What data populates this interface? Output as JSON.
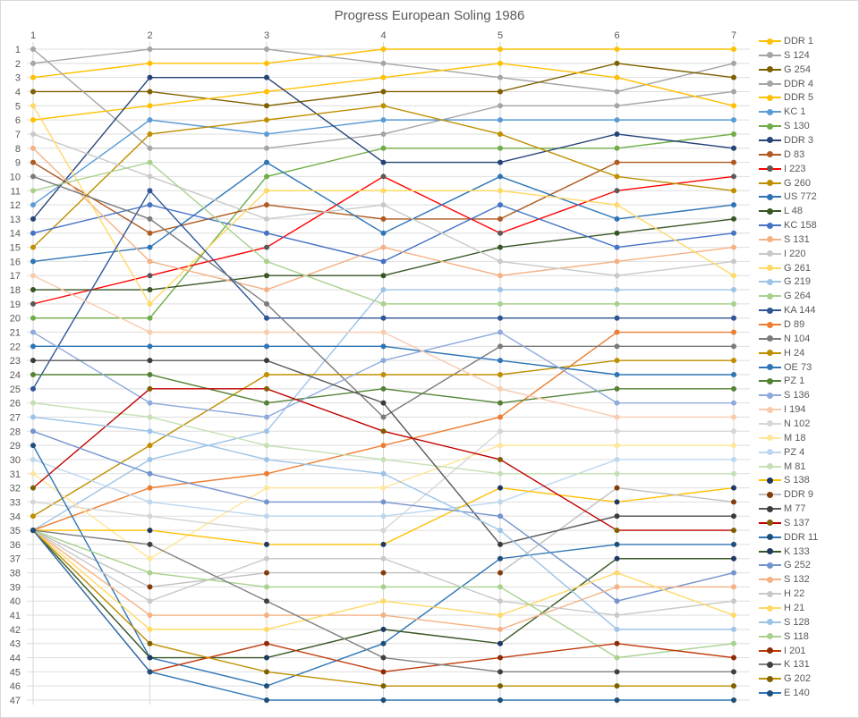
{
  "title": "Progress European Soling 1986",
  "chart_data": {
    "type": "line",
    "title": "Progress European Soling 1986",
    "x": [
      1,
      2,
      3,
      4,
      5,
      6,
      7
    ],
    "xlabel": "",
    "ylabel": "",
    "ylim": [
      1,
      47
    ],
    "y_axis": "rank 1 at top, 47 at bottom",
    "grid": true,
    "legend_position": "right",
    "axis_color": "#595959",
    "grid_color_h": "#dedede",
    "grid_color_v": "#d6d6d6",
    "series": [
      {
        "name": "DDR 1",
        "line": "#FFC000",
        "marker": "#FFC000",
        "ranks": [
          3,
          2,
          2,
          1,
          1,
          1,
          1
        ]
      },
      {
        "name": "S 124",
        "line": "#A5A5A5",
        "marker": "#A5A5A5",
        "ranks": [
          2,
          1,
          1,
          2,
          3,
          4,
          2
        ]
      },
      {
        "name": "G 254",
        "line": "#7F6000",
        "marker": "#7F6000",
        "ranks": [
          4,
          4,
          5,
          4,
          4,
          2,
          3
        ]
      },
      {
        "name": "DDR 4",
        "line": "#A5A5A5",
        "marker": "#A5A5A5",
        "ranks": [
          1,
          8,
          8,
          7,
          5,
          5,
          4
        ]
      },
      {
        "name": "DDR 5",
        "line": "#FFC000",
        "marker": "#FFC000",
        "ranks": [
          6,
          5,
          4,
          3,
          2,
          3,
          5
        ]
      },
      {
        "name": "KC 1",
        "line": "#5B9BD5",
        "marker": "#5B9BD5",
        "ranks": [
          12,
          6,
          7,
          6,
          6,
          6,
          6
        ]
      },
      {
        "name": "S 130",
        "line": "#70AD47",
        "marker": "#70AD47",
        "ranks": [
          20,
          20,
          10,
          8,
          8,
          8,
          7
        ]
      },
      {
        "name": "DDR 3",
        "line": "#264478",
        "marker": "#264478",
        "ranks": [
          13,
          3,
          3,
          9,
          9,
          7,
          8
        ]
      },
      {
        "name": "D 83",
        "line": "#AE5A21",
        "marker": "#AE5A21",
        "ranks": [
          9,
          14,
          12,
          13,
          13,
          9,
          9
        ]
      },
      {
        "name": "I 223",
        "line": "#FF0000",
        "marker": "#595959",
        "ranks": [
          19,
          17,
          15,
          10,
          14,
          11,
          10
        ]
      },
      {
        "name": "G 260",
        "line": "#BF8F00",
        "marker": "#BF8F00",
        "ranks": [
          15,
          7,
          6,
          5,
          7,
          10,
          11
        ]
      },
      {
        "name": "US 772",
        "line": "#2E75B6",
        "marker": "#2E75B6",
        "ranks": [
          16,
          15,
          9,
          14,
          10,
          13,
          12
        ]
      },
      {
        "name": "L 48",
        "line": "#375623",
        "marker": "#375623",
        "ranks": [
          18,
          18,
          17,
          17,
          15,
          14,
          13
        ]
      },
      {
        "name": "KC 158",
        "line": "#4472C4",
        "marker": "#4472C4",
        "ranks": [
          14,
          12,
          14,
          16,
          12,
          15,
          14
        ]
      },
      {
        "name": "S 131",
        "line": "#F4B183",
        "marker": "#F4B183",
        "ranks": [
          8,
          16,
          18,
          15,
          17,
          16,
          15
        ]
      },
      {
        "name": "I 220",
        "line": "#C9C9C9",
        "marker": "#C9C9C9",
        "ranks": [
          7,
          10,
          13,
          12,
          16,
          17,
          16
        ]
      },
      {
        "name": "G 261",
        "line": "#FFD966",
        "marker": "#FFD966",
        "ranks": [
          5,
          19,
          11,
          11,
          11,
          12,
          17
        ]
      },
      {
        "name": "G 219",
        "line": "#9DC3E6",
        "marker": "#9DC3E6",
        "ranks": [
          35,
          30,
          28,
          18,
          18,
          18,
          18
        ]
      },
      {
        "name": "G 264",
        "line": "#A9D18E",
        "marker": "#A9D18E",
        "ranks": [
          11,
          9,
          16,
          19,
          19,
          19,
          19
        ]
      },
      {
        "name": "KA 144",
        "line": "#2F5597",
        "marker": "#2F5597",
        "ranks": [
          25,
          11,
          20,
          20,
          20,
          20,
          20
        ]
      },
      {
        "name": "D 89",
        "line": "#ED7D31",
        "marker": "#ED7D31",
        "ranks": [
          35,
          32,
          31,
          29,
          27,
          21,
          21
        ]
      },
      {
        "name": "N 104",
        "line": "#7B7B7B",
        "marker": "#7B7B7B",
        "ranks": [
          10,
          13,
          19,
          27,
          22,
          22,
          22
        ]
      },
      {
        "name": "H 24",
        "line": "#BF8F00",
        "marker": "#BF8F00",
        "ranks": [
          34,
          29,
          24,
          24,
          24,
          23,
          23
        ]
      },
      {
        "name": "OE 73",
        "line": "#2E75B6",
        "marker": "#2E75B6",
        "ranks": [
          22,
          22,
          22,
          22,
          23,
          24,
          24
        ]
      },
      {
        "name": "PZ 1",
        "line": "#548235",
        "marker": "#548235",
        "ranks": [
          24,
          24,
          26,
          25,
          26,
          25,
          25
        ]
      },
      {
        "name": "S 136",
        "line": "#8FAADC",
        "marker": "#8FAADC",
        "ranks": [
          21,
          26,
          27,
          23,
          21,
          26,
          26
        ]
      },
      {
        "name": "I 194",
        "line": "#F8CBAD",
        "marker": "#F8CBAD",
        "ranks": [
          17,
          21,
          21,
          21,
          25,
          27,
          27
        ]
      },
      {
        "name": "N 102",
        "line": "#D6D6D6",
        "marker": "#D6D6D6",
        "ranks": [
          33,
          34,
          35,
          35,
          28,
          28,
          28
        ]
      },
      {
        "name": "M 18",
        "line": "#FFE699",
        "marker": "#FFE699",
        "ranks": [
          31,
          37,
          32,
          32,
          29,
          29,
          29
        ]
      },
      {
        "name": "PZ 4",
        "line": "#BDD7EE",
        "marker": "#BDD7EE",
        "ranks": [
          30,
          33,
          34,
          34,
          33,
          30,
          30
        ]
      },
      {
        "name": "M 81",
        "line": "#C5E0B4",
        "marker": "#C5E0B4",
        "ranks": [
          26,
          27,
          29,
          30,
          31,
          31,
          31
        ]
      },
      {
        "name": "S 138",
        "line": "#FFC000",
        "marker": "#1F3864",
        "ranks": [
          35,
          35,
          36,
          36,
          32,
          33,
          32
        ]
      },
      {
        "name": "DDR 9",
        "line": "#BFBFBF",
        "marker": "#843C0C",
        "ranks": [
          35,
          39,
          38,
          38,
          38,
          32,
          33
        ]
      },
      {
        "name": "M 77",
        "line": "#595959",
        "marker": "#3B3B3B",
        "ranks": [
          23,
          23,
          23,
          26,
          36,
          34,
          34
        ]
      },
      {
        "name": "S 137",
        "line": "#C00000",
        "marker": "#7F6000",
        "ranks": [
          32,
          25,
          25,
          28,
          30,
          35,
          35
        ]
      },
      {
        "name": "DDR 11",
        "line": "#2E75B6",
        "marker": "#1F4E79",
        "ranks": [
          29,
          44,
          46,
          43,
          37,
          36,
          36
        ]
      },
      {
        "name": "K 133",
        "line": "#375623",
        "marker": "#1F3864",
        "ranks": [
          35,
          44,
          44,
          42,
          43,
          37,
          37
        ]
      },
      {
        "name": "G 252",
        "line": "#7494CE",
        "marker": "#7494CE",
        "ranks": [
          28,
          31,
          33,
          33,
          34,
          40,
          38
        ]
      },
      {
        "name": "S 132",
        "line": "#F4B183",
        "marker": "#F4B183",
        "ranks": [
          35,
          41,
          41,
          41,
          42,
          39,
          39
        ]
      },
      {
        "name": "H 22",
        "line": "#C9C9C9",
        "marker": "#C9C9C9",
        "ranks": [
          35,
          40,
          37,
          37,
          40,
          41,
          40
        ]
      },
      {
        "name": "H 21",
        "line": "#FFD966",
        "marker": "#FFD966",
        "ranks": [
          35,
          42,
          42,
          40,
          41,
          38,
          41
        ]
      },
      {
        "name": "S 128",
        "line": "#9DC3E6",
        "marker": "#9DC3E6",
        "ranks": [
          27,
          28,
          30,
          31,
          35,
          42,
          42
        ]
      },
      {
        "name": "S 118",
        "line": "#A9D18E",
        "marker": "#A9D18E",
        "ranks": [
          35,
          38,
          39,
          39,
          39,
          44,
          43
        ]
      },
      {
        "name": "I 201",
        "line": "#C0390B",
        "marker": "#8E2C05",
        "ranks": [
          35,
          45,
          43,
          45,
          44,
          43,
          44
        ]
      },
      {
        "name": "K 131",
        "line": "#808080",
        "marker": "#404040",
        "ranks": [
          35,
          36,
          40,
          44,
          45,
          45,
          45
        ]
      },
      {
        "name": "G 202",
        "line": "#BF8F00",
        "marker": "#7F6000",
        "ranks": [
          35,
          43,
          45,
          46,
          46,
          46,
          46
        ]
      },
      {
        "name": "E 140",
        "line": "#2E75B6",
        "marker": "#1F4E79",
        "ranks": [
          35,
          45,
          47,
          47,
          47,
          47,
          47
        ]
      }
    ]
  }
}
